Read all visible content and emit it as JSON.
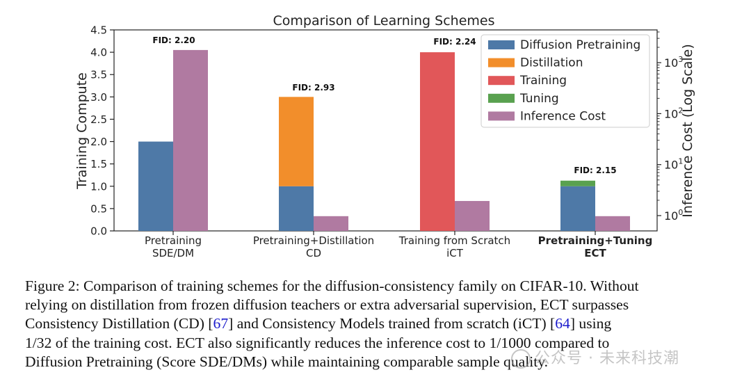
{
  "chart_data": {
    "type": "bar",
    "title": "Comparison of Learning Schemes",
    "ylabel_left": "Training Compute",
    "ylabel_right": "Inference Cost (Log Scale)",
    "ylim_left": [
      0,
      4.5
    ],
    "yticks_left": [
      "0.0",
      "0.5",
      "1.0",
      "1.5",
      "2.0",
      "2.5",
      "3.0",
      "3.5",
      "4.0",
      "4.5"
    ],
    "yticks_right": [
      {
        "base": "10",
        "exp": "0"
      },
      {
        "base": "10",
        "exp": "1"
      },
      {
        "base": "10",
        "exp": "2"
      },
      {
        "base": "10",
        "exp": "3"
      }
    ],
    "grid": false,
    "legend_position": "top-right",
    "categories": [
      {
        "line1": "Pretraining",
        "line2": "SDE/DM",
        "bold": false
      },
      {
        "line1": "Pretraining+Distillation",
        "line2": "CD",
        "bold": false
      },
      {
        "line1": "Training from Scratch",
        "line2": "iCT",
        "bold": false
      },
      {
        "line1": "Pretraining+Tuning",
        "line2": "ECT",
        "bold": true
      }
    ],
    "series": [
      {
        "name": "Diffusion Pretraining",
        "color": "#4e79a7",
        "values": [
          2.0,
          1.0,
          0,
          1.0
        ]
      },
      {
        "name": "Distillation",
        "color": "#f28e2b",
        "values": [
          0,
          2.0,
          0,
          0
        ]
      },
      {
        "name": "Training",
        "color": "#e15759",
        "values": [
          0,
          0,
          4.0,
          0
        ]
      },
      {
        "name": "Tuning",
        "color": "#59a14f",
        "values": [
          0,
          0,
          0,
          0.125
        ]
      },
      {
        "name": "Inference Cost",
        "color": "#b07aa1",
        "values": [
          4.05,
          0.33,
          0.67,
          0.33
        ]
      }
    ],
    "annotations": [
      "FID: 2.20",
      "FID: 2.93",
      "FID: 2.24",
      "FID: 2.15"
    ]
  },
  "caption": {
    "line1": "Figure 2: Comparison of training schemes for the diffusion-consistency family on CIFAR-10. Without",
    "line2": "relying on distillation from frozen diffusion teachers or extra adversarial supervision, ECT surpasses",
    "line3_a": "Consistency Distillation (CD) [",
    "ref1": "67",
    "line3_b": "] and Consistency Models trained from scratch (iCT) [",
    "ref2": "64",
    "line3_c": "] using",
    "line4": "1/32 of the training cost. ECT also significantly reduces the inference cost to 1/1000 compared to",
    "line5": "Diffusion Pretraining (Score SDE/DMs) while maintaining comparable sample quality."
  },
  "watermark": "公众号 · 未来科技潮"
}
